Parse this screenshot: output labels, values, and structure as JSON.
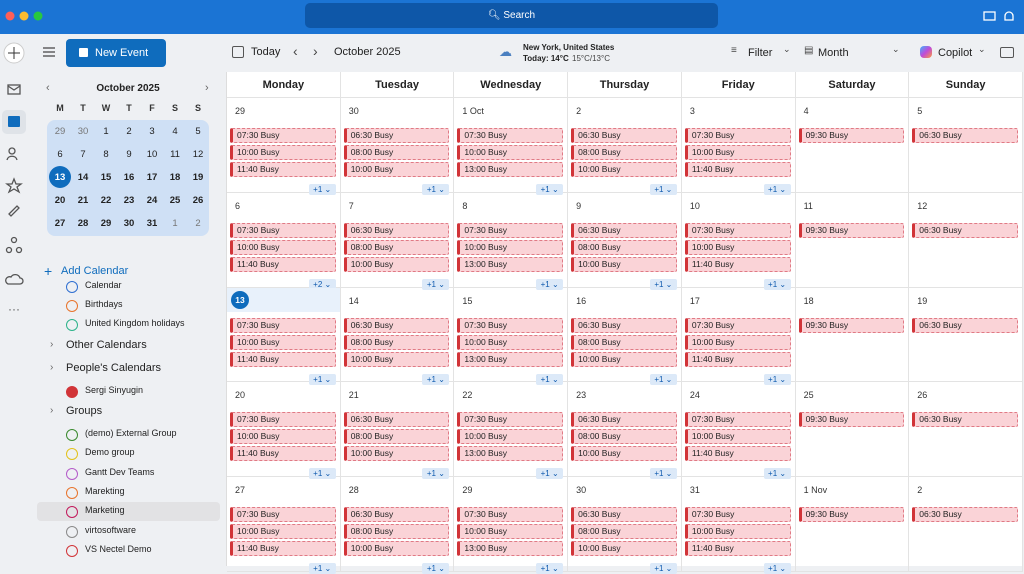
{
  "topbar": {
    "search": "Search"
  },
  "sidebar": {
    "new_event": "New Event",
    "mini_calendar": {
      "title": "October 2025",
      "weekdays": [
        "M",
        "T",
        "W",
        "T",
        "F",
        "S",
        "S"
      ],
      "selected": 13,
      "weeks": [
        [
          29,
          30,
          1,
          2,
          3,
          4,
          5
        ],
        [
          6,
          7,
          8,
          9,
          10,
          11,
          12
        ],
        [
          13,
          14,
          15,
          16,
          17,
          18,
          19
        ],
        [
          20,
          21,
          22,
          23,
          24,
          25,
          26
        ],
        [
          27,
          28,
          29,
          30,
          31,
          1,
          2
        ]
      ]
    },
    "add_calendar": "Add Calendar",
    "calendars": [
      {
        "name": "Calendar",
        "color": "#2f6fd1"
      },
      {
        "name": "Birthdays",
        "color": "#e8742c"
      },
      {
        "name": "United Kingdom holidays",
        "color": "#2db38a"
      }
    ],
    "other_calendars": "Other Calendars",
    "peoples_calendars": {
      "title": "People's Calendars",
      "items": [
        {
          "name": "Sergi Sinyugin",
          "color": "#d13438",
          "checked": true
        }
      ]
    },
    "groups": {
      "title": "Groups",
      "items": [
        {
          "name": "(demo) External Group",
          "color": "#3a8a2e"
        },
        {
          "name": "Demo group",
          "color": "#e2c21b"
        },
        {
          "name": "Gantt Dev Teams",
          "color": "#b45bc9"
        },
        {
          "name": "Marekting",
          "color": "#e8742c"
        },
        {
          "name": "Marketing",
          "color": "#c2185b",
          "selected": true
        },
        {
          "name": "virtosoftware",
          "color": "#8a8a8a"
        },
        {
          "name": "VS Nectel Demo",
          "color": "#d13438"
        }
      ]
    }
  },
  "toolbar": {
    "today": "Today",
    "month_title": "October 2025",
    "location": "New York, United States",
    "weather_today": "Today: 14°C",
    "weather_range": "15°C/13°C",
    "filter": "Filter",
    "view": "Month",
    "copilot": "Copilot"
  },
  "grid": {
    "weekdays": [
      "Monday",
      "Tuesday",
      "Wednesday",
      "Thursday",
      "Friday",
      "Saturday",
      "Sunday"
    ],
    "weeks": [
      {
        "days": [
          {
            "date": "29",
            "events": [
              "07:30  Busy",
              "10:00  Busy",
              "11:40  Busy"
            ],
            "more": "+1"
          },
          {
            "date": "30",
            "events": [
              "06:30  Busy",
              "08:00  Busy",
              "10:00  Busy"
            ],
            "more": "+1"
          },
          {
            "date": "1 Oct",
            "events": [
              "07:30  Busy",
              "10:00  Busy",
              "13:00  Busy"
            ],
            "more": "+1"
          },
          {
            "date": "2",
            "events": [
              "06:30  Busy",
              "08:00  Busy",
              "10:00  Busy"
            ],
            "more": "+1"
          },
          {
            "date": "3",
            "events": [
              "07:30  Busy",
              "10:00  Busy",
              "11:40  Busy"
            ],
            "more": "+1"
          },
          {
            "date": "4",
            "events": [
              "09:30  Busy"
            ]
          },
          {
            "date": "5",
            "events": [
              "06:30  Busy"
            ]
          }
        ]
      },
      {
        "days": [
          {
            "date": "6",
            "events": [
              "07:30  Busy",
              "10:00  Busy",
              "11:40  Busy"
            ],
            "more": "+2"
          },
          {
            "date": "7",
            "events": [
              "06:30  Busy",
              "08:00  Busy",
              "10:00  Busy"
            ],
            "more": "+1"
          },
          {
            "date": "8",
            "events": [
              "07:30  Busy",
              "10:00  Busy",
              "13:00  Busy"
            ],
            "more": "+1"
          },
          {
            "date": "9",
            "events": [
              "06:30  Busy",
              "08:00  Busy",
              "10:00  Busy"
            ],
            "more": "+1"
          },
          {
            "date": "10",
            "events": [
              "07:30  Busy",
              "10:00  Busy",
              "11:40  Busy"
            ],
            "more": "+1"
          },
          {
            "date": "11",
            "events": [
              "09:30  Busy"
            ]
          },
          {
            "date": "12",
            "events": [
              "06:30  Busy"
            ]
          }
        ]
      },
      {
        "days": [
          {
            "date": "13",
            "today": true,
            "events": [
              "07:30  Busy",
              "10:00  Busy",
              "11:40  Busy"
            ],
            "more": "+1"
          },
          {
            "date": "14",
            "events": [
              "06:30  Busy",
              "08:00  Busy",
              "10:00  Busy"
            ],
            "more": "+1"
          },
          {
            "date": "15",
            "events": [
              "07:30  Busy",
              "10:00  Busy",
              "13:00  Busy"
            ],
            "more": "+1"
          },
          {
            "date": "16",
            "events": [
              "06:30  Busy",
              "08:00  Busy",
              "10:00  Busy"
            ],
            "more": "+1"
          },
          {
            "date": "17",
            "events": [
              "07:30  Busy",
              "10:00  Busy",
              "11:40  Busy"
            ],
            "more": "+1"
          },
          {
            "date": "18",
            "events": [
              "09:30  Busy"
            ]
          },
          {
            "date": "19",
            "events": [
              "06:30  Busy"
            ]
          }
        ]
      },
      {
        "days": [
          {
            "date": "20",
            "events": [
              "07:30  Busy",
              "10:00  Busy",
              "11:40  Busy"
            ],
            "more": "+1"
          },
          {
            "date": "21",
            "events": [
              "06:30  Busy",
              "08:00  Busy",
              "10:00  Busy"
            ],
            "more": "+1"
          },
          {
            "date": "22",
            "events": [
              "07:30  Busy",
              "10:00  Busy",
              "13:00  Busy"
            ],
            "more": "+1"
          },
          {
            "date": "23",
            "events": [
              "06:30  Busy",
              "08:00  Busy",
              "10:00  Busy"
            ],
            "more": "+1"
          },
          {
            "date": "24",
            "events": [
              "07:30  Busy",
              "10:00  Busy",
              "11:40  Busy"
            ],
            "more": "+1"
          },
          {
            "date": "25",
            "events": [
              "09:30  Busy"
            ]
          },
          {
            "date": "26",
            "events": [
              "06:30  Busy"
            ]
          }
        ]
      },
      {
        "days": [
          {
            "date": "27",
            "events": [
              "07:30  Busy",
              "10:00  Busy",
              "11:40  Busy"
            ],
            "more": "+1"
          },
          {
            "date": "28",
            "events": [
              "06:30  Busy",
              "08:00  Busy",
              "10:00  Busy"
            ],
            "more": "+1"
          },
          {
            "date": "29",
            "events": [
              "07:30  Busy",
              "10:00  Busy",
              "13:00  Busy"
            ],
            "more": "+1"
          },
          {
            "date": "30",
            "events": [
              "06:30  Busy",
              "08:00  Busy",
              "10:00  Busy"
            ],
            "more": "+1"
          },
          {
            "date": "31",
            "events": [
              "07:30  Busy",
              "10:00  Busy",
              "11:40  Busy"
            ],
            "more": "+1"
          },
          {
            "date": "1 Nov",
            "events": [
              "09:30  Busy"
            ]
          },
          {
            "date": "2",
            "events": [
              "06:30  Busy"
            ]
          }
        ]
      }
    ]
  }
}
